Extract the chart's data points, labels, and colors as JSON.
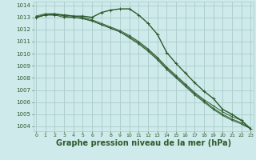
{
  "background_color": "#ceeaea",
  "grid_color": "#aacccc",
  "line_color": "#2d5a2d",
  "xlabel": "Graphe pression niveau de la mer (hPa)",
  "xlabel_fontsize": 7,
  "ylabel_ticks": [
    1004,
    1005,
    1006,
    1007,
    1008,
    1009,
    1010,
    1011,
    1012,
    1013,
    1014
  ],
  "ylim": [
    1003.6,
    1014.3
  ],
  "xlim": [
    -0.3,
    23.3
  ],
  "xticks": [
    0,
    1,
    2,
    3,
    4,
    5,
    6,
    7,
    8,
    9,
    10,
    11,
    12,
    13,
    14,
    15,
    16,
    17,
    18,
    19,
    20,
    21,
    22,
    23
  ],
  "series": [
    [
      1013.0,
      1013.2,
      1013.2,
      1013.2,
      1013.1,
      1013.1,
      1013.0,
      1013.4,
      1013.6,
      1013.7,
      1013.7,
      1013.2,
      1012.5,
      1011.6,
      1010.1,
      1009.2,
      1008.4,
      1007.6,
      1006.9,
      1006.3,
      1005.4,
      1005.0,
      1004.5,
      1003.8
    ],
    [
      1013.1,
      1013.3,
      1013.3,
      1013.2,
      1013.1,
      1013.0,
      1012.8,
      1012.5,
      1012.2,
      1011.9,
      1011.5,
      1011.0,
      1010.4,
      1009.7,
      1008.9,
      1008.2,
      1007.5,
      1006.8,
      1006.2,
      1005.7,
      1005.2,
      1004.8,
      1004.5,
      1003.8
    ],
    [
      1013.0,
      1013.2,
      1013.3,
      1013.1,
      1013.0,
      1012.9,
      1012.7,
      1012.4,
      1012.1,
      1011.8,
      1011.4,
      1010.9,
      1010.3,
      1009.6,
      1008.8,
      1008.1,
      1007.4,
      1006.7,
      1006.1,
      1005.5,
      1005.0,
      1004.6,
      1004.3,
      1003.8
    ],
    [
      1013.0,
      1013.2,
      1013.2,
      1013.0,
      1013.0,
      1012.9,
      1012.7,
      1012.4,
      1012.1,
      1011.8,
      1011.3,
      1010.8,
      1010.2,
      1009.5,
      1008.7,
      1008.0,
      1007.3,
      1006.6,
      1006.0,
      1005.4,
      1004.9,
      1004.5,
      1004.2,
      1003.8
    ]
  ]
}
